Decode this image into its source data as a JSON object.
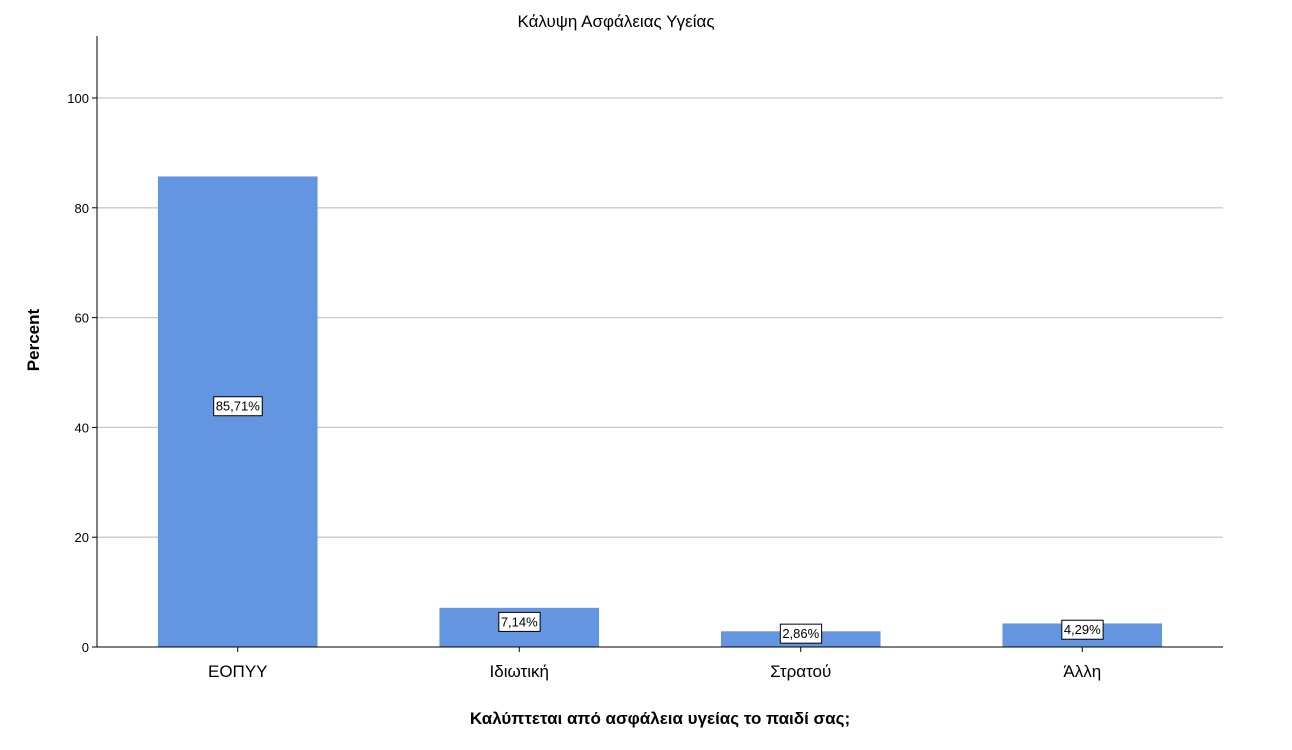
{
  "chart_data": {
    "type": "bar",
    "title": "Κάλυψη Ασφάλειας Υγείας",
    "xlabel": "Καλύπτεται από ασφάλεια υγείας το παιδί σας;",
    "ylabel": "Percent",
    "categories": [
      "ΕΟΠΥΥ",
      "Ιδιωτική",
      "Στρατού",
      "Άλλη"
    ],
    "values": [
      85.71,
      7.14,
      2.86,
      4.29
    ],
    "data_labels": [
      "85,71%",
      "7,14%",
      "2,86%",
      "4,29%"
    ],
    "ylim": [
      0,
      110
    ],
    "yticks": [
      0,
      20,
      40,
      60,
      80,
      100
    ],
    "grid": true,
    "bar_color": "#6495e0"
  }
}
